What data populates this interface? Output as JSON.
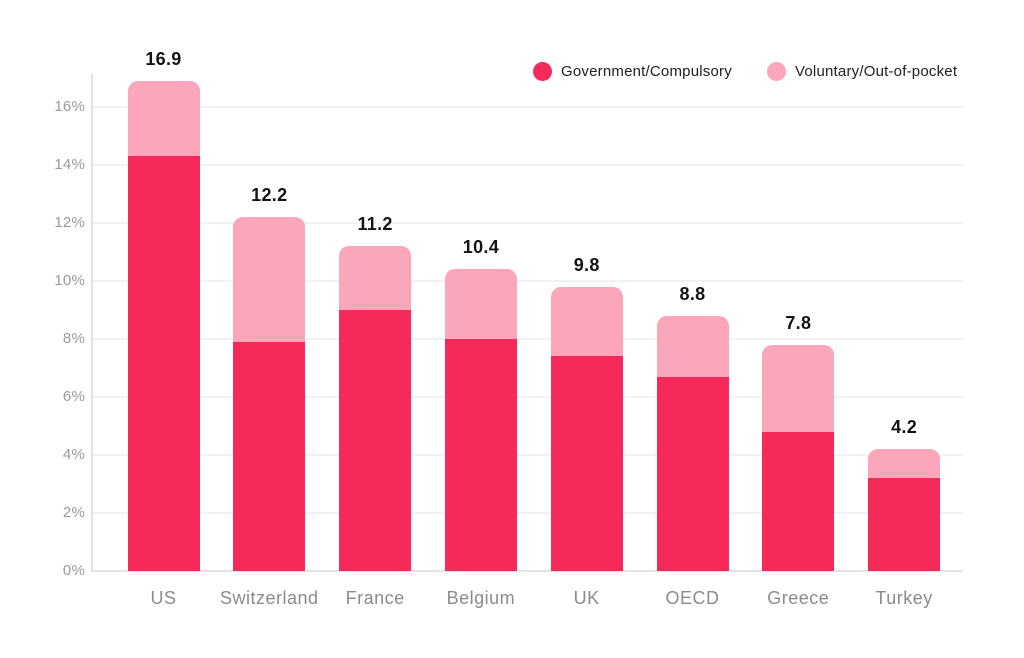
{
  "chart_data": {
    "type": "bar",
    "stacked": true,
    "title": "",
    "xlabel": "",
    "ylabel": "",
    "categories": [
      "US",
      "Switzerland",
      "France",
      "Belgium",
      "UK",
      "OECD",
      "Greece",
      "Turkey"
    ],
    "series": [
      {
        "name": "Government/Compulsory",
        "color": "#F62A5A",
        "values": [
          14.3,
          7.9,
          9.0,
          8.0,
          7.4,
          6.7,
          4.8,
          3.2
        ]
      },
      {
        "name": "Voluntary/Out-of-pocket",
        "color": "#FCA6BB",
        "values": [
          2.6,
          4.3,
          2.2,
          2.4,
          2.4,
          2.1,
          3.0,
          1.0
        ]
      }
    ],
    "totals": [
      16.9,
      12.2,
      11.2,
      10.4,
      9.8,
      8.8,
      7.8,
      4.2
    ],
    "total_labels": [
      "16.9",
      "12.2",
      "11.2",
      "10.4",
      "9.8",
      "8.8",
      "7.8",
      "4.2"
    ],
    "ytick_labels": [
      "0%",
      "2%",
      "4%",
      "6%",
      "8%",
      "10%",
      "12%",
      "14%",
      "16%"
    ],
    "ytick_values": [
      0,
      2,
      4,
      6,
      8,
      10,
      12,
      14,
      16
    ],
    "ylim": [
      0,
      16.9
    ],
    "grid": "horizontal",
    "legend_position": "top-right",
    "colors": {
      "government": "#F62A5A",
      "voluntary": "#FCA6BB",
      "grid": "#F2F2F2",
      "axis": "#E3E3E3",
      "tick_text": "#9B9B9B",
      "category_text": "#8B8B8B",
      "value_text": "#141414",
      "legend_text": "#212121",
      "background": "#FFFFFF"
    }
  }
}
